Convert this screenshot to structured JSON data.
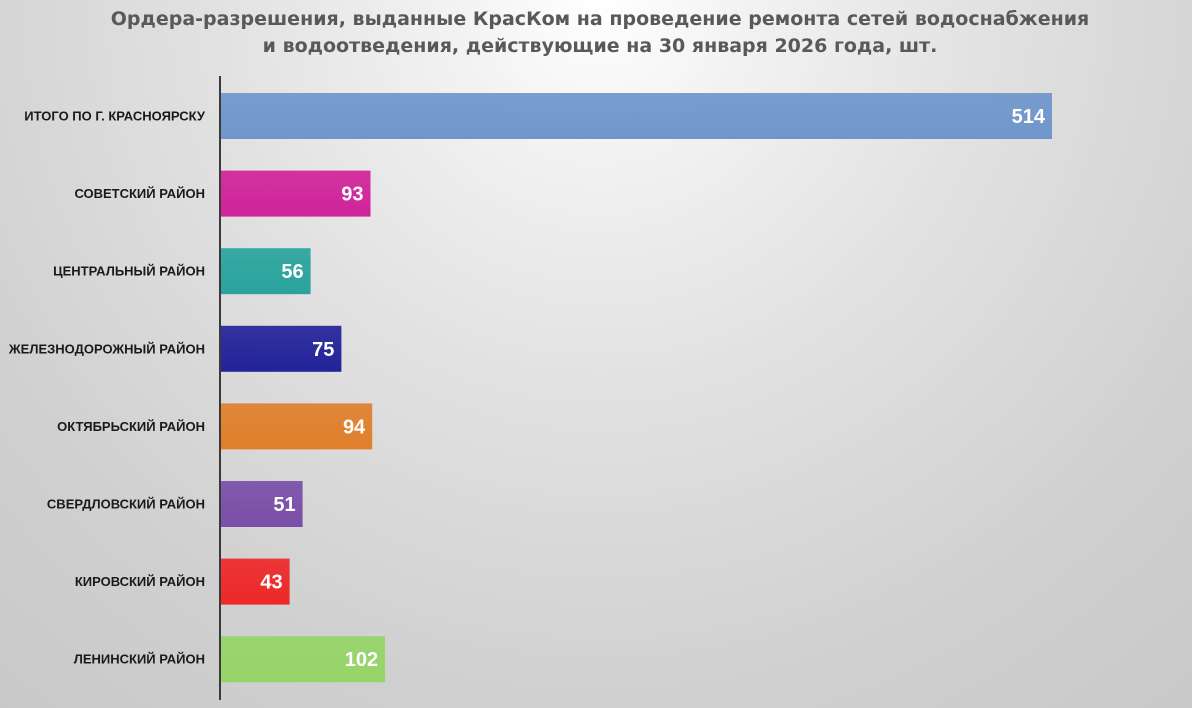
{
  "chart_data": {
    "type": "bar",
    "orientation": "horizontal",
    "title": "Ордера-разрешения, выданные КрасКом на проведение ремонта сетей водоснабжения и водоотведения, действующие на 30 января 2026 года, шт.",
    "title_lines": [
      "Ордера-разрешения, выданные КрасКом на проведение ремонта сетей водоснабжения",
      "и водоотведения, действующие на 30 января 2026 года, шт."
    ],
    "categories": [
      "ИТОГО ПО Г. КРАСНОЯРСКУ",
      "СОВЕТСКИЙ РАЙОН",
      "ЦЕНТРАЛЬНЫЙ РАЙОН",
      "ЖЕЛЕЗНОДОРОЖНЫЙ РАЙОН",
      "ОКТЯБРЬСКИЙ РАЙОН",
      "СВЕРДЛОВСКИЙ РАЙОН",
      "КИРОВСКИЙ РАЙОН",
      "ЛЕНИНСКИЙ РАЙОН"
    ],
    "values": [
      514,
      93,
      56,
      75,
      94,
      51,
      43,
      102
    ],
    "colors": [
      "#6f96cb",
      "#d0239a",
      "#2aa39d",
      "#23239a",
      "#e07f2c",
      "#7a4fa8",
      "#ee2828",
      "#96d468"
    ],
    "data_labels": true,
    "grid": false,
    "legend": "none",
    "xlim": [
      0,
      560
    ]
  }
}
